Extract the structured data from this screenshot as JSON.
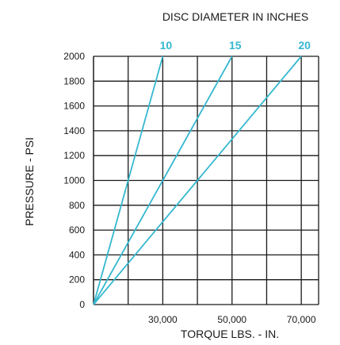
{
  "chart_data": {
    "type": "line",
    "title": "DISC DIAMETER IN INCHES",
    "xlabel": "TORQUE LBS. - IN.",
    "ylabel": "PRESSURE - PSI",
    "xlim": [
      10000,
      75000
    ],
    "ylim": [
      0,
      2000
    ],
    "x_ticks": [
      20000,
      30000,
      40000,
      50000,
      60000,
      70000
    ],
    "x_tick_labels": [
      "",
      "30,000",
      "",
      "50,000",
      "",
      "70,000"
    ],
    "y_ticks": [
      0,
      200,
      400,
      600,
      800,
      1000,
      1200,
      1400,
      1600,
      1800,
      2000
    ],
    "y_tick_labels": [
      "0",
      "200",
      "400",
      "600",
      "800",
      "1000",
      "1200",
      "1400",
      "1600",
      "1800",
      "2000"
    ],
    "grid": true,
    "series": [
      {
        "name": "10",
        "x": [
          10000,
          30000
        ],
        "y": [
          0,
          2000
        ]
      },
      {
        "name": "15",
        "x": [
          10000,
          50000
        ],
        "y": [
          0,
          2000
        ]
      },
      {
        "name": "20",
        "x": [
          10000,
          70000
        ],
        "y": [
          0,
          2000
        ]
      }
    ],
    "colors": {
      "series": "#35b8cf",
      "grid": "#1a1a1a",
      "text": "#1a1a1a"
    }
  }
}
